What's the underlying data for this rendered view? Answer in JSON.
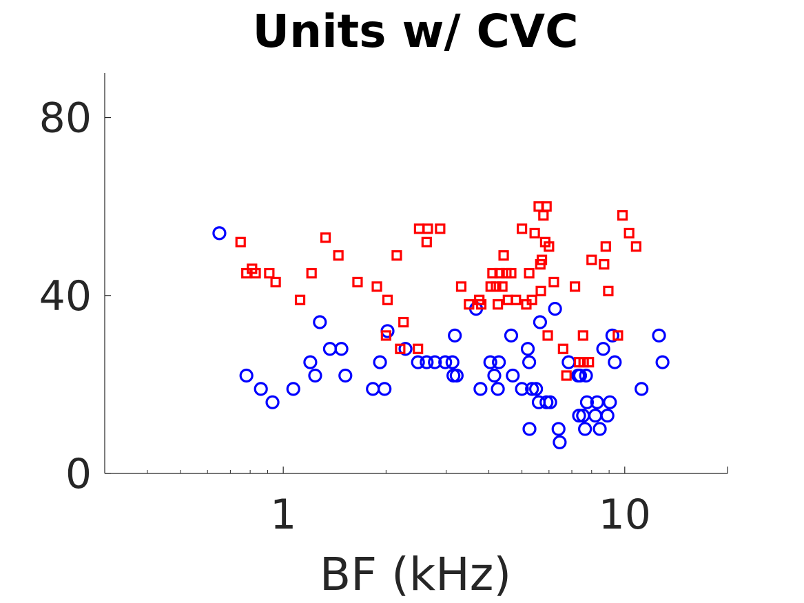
{
  "chart_data": {
    "type": "scatter",
    "title": "Units w/ CVC",
    "xlabel": "BF (kHz)",
    "ylabel": "",
    "xscale": "log",
    "xlim": [
      0.3,
      20
    ],
    "ylim": [
      0,
      90
    ],
    "xticks": [
      {
        "value": 1,
        "label": "1"
      },
      {
        "value": 10,
        "label": "10"
      }
    ],
    "yticks": [
      {
        "value": 0,
        "label": "0"
      },
      {
        "value": 40,
        "label": "40"
      },
      {
        "value": 80,
        "label": "80"
      }
    ],
    "grid": false,
    "colors": {
      "axis": "#262626",
      "title": "#000000"
    },
    "series": [
      {
        "name": "blue-circles",
        "marker": "circle",
        "color": "#0000ff",
        "points": [
          [
            0.65,
            54
          ],
          [
            0.78,
            22
          ],
          [
            0.86,
            19
          ],
          [
            0.93,
            16
          ],
          [
            1.07,
            19
          ],
          [
            1.2,
            25
          ],
          [
            1.24,
            22
          ],
          [
            1.28,
            34
          ],
          [
            1.37,
            28
          ],
          [
            1.48,
            28
          ],
          [
            1.52,
            22
          ],
          [
            1.83,
            19
          ],
          [
            1.92,
            25
          ],
          [
            1.98,
            19
          ],
          [
            2.02,
            32
          ],
          [
            2.28,
            28
          ],
          [
            2.48,
            25
          ],
          [
            2.63,
            25
          ],
          [
            2.78,
            25
          ],
          [
            2.98,
            25
          ],
          [
            3.13,
            25
          ],
          [
            3.15,
            22
          ],
          [
            3.18,
            31
          ],
          [
            3.22,
            22
          ],
          [
            3.67,
            37
          ],
          [
            3.78,
            19
          ],
          [
            4.04,
            25
          ],
          [
            4.15,
            22
          ],
          [
            4.25,
            19
          ],
          [
            4.28,
            25
          ],
          [
            4.65,
            31
          ],
          [
            4.7,
            22
          ],
          [
            5.0,
            19
          ],
          [
            5.2,
            28
          ],
          [
            5.25,
            25
          ],
          [
            5.26,
            10
          ],
          [
            5.35,
            19
          ],
          [
            5.5,
            19
          ],
          [
            5.6,
            16
          ],
          [
            5.65,
            34
          ],
          [
            5.9,
            16
          ],
          [
            6.05,
            16
          ],
          [
            6.25,
            37
          ],
          [
            6.4,
            10
          ],
          [
            6.45,
            7
          ],
          [
            6.85,
            25
          ],
          [
            7.3,
            22
          ],
          [
            7.35,
            13
          ],
          [
            7.4,
            22
          ],
          [
            7.55,
            13
          ],
          [
            7.65,
            10
          ],
          [
            7.7,
            22
          ],
          [
            7.75,
            16
          ],
          [
            8.2,
            13
          ],
          [
            8.3,
            16
          ],
          [
            8.45,
            10
          ],
          [
            8.65,
            28
          ],
          [
            8.9,
            13
          ],
          [
            9.05,
            16
          ],
          [
            9.2,
            31
          ],
          [
            9.35,
            25
          ],
          [
            11.2,
            19
          ],
          [
            12.6,
            31
          ],
          [
            12.9,
            25
          ]
        ]
      },
      {
        "name": "red-squares",
        "marker": "square",
        "color": "#ff0000",
        "points": [
          [
            0.75,
            52
          ],
          [
            0.78,
            45
          ],
          [
            0.81,
            46
          ],
          [
            0.83,
            45
          ],
          [
            0.91,
            45
          ],
          [
            0.95,
            43
          ],
          [
            1.12,
            39
          ],
          [
            1.21,
            45
          ],
          [
            1.33,
            53
          ],
          [
            1.45,
            49
          ],
          [
            1.65,
            43
          ],
          [
            1.88,
            42
          ],
          [
            2.0,
            31
          ],
          [
            2.02,
            39
          ],
          [
            2.15,
            49
          ],
          [
            2.2,
            28
          ],
          [
            2.25,
            34
          ],
          [
            2.48,
            28
          ],
          [
            2.5,
            55
          ],
          [
            2.63,
            52
          ],
          [
            2.65,
            55
          ],
          [
            2.88,
            55
          ],
          [
            3.32,
            42
          ],
          [
            3.5,
            38
          ],
          [
            3.75,
            39
          ],
          [
            3.8,
            38
          ],
          [
            4.05,
            42
          ],
          [
            4.1,
            45
          ],
          [
            4.2,
            42
          ],
          [
            4.25,
            38
          ],
          [
            4.3,
            45
          ],
          [
            4.38,
            42
          ],
          [
            4.42,
            49
          ],
          [
            4.5,
            45
          ],
          [
            4.55,
            39
          ],
          [
            4.65,
            45
          ],
          [
            4.8,
            39
          ],
          [
            5.0,
            55
          ],
          [
            5.15,
            38
          ],
          [
            5.25,
            45
          ],
          [
            5.35,
            39
          ],
          [
            5.45,
            54
          ],
          [
            5.6,
            60
          ],
          [
            5.66,
            47
          ],
          [
            5.68,
            41
          ],
          [
            5.72,
            48
          ],
          [
            5.78,
            58
          ],
          [
            5.85,
            52
          ],
          [
            5.9,
            60
          ],
          [
            5.95,
            31
          ],
          [
            6.0,
            51
          ],
          [
            6.2,
            43
          ],
          [
            6.6,
            28
          ],
          [
            6.75,
            22
          ],
          [
            7.15,
            42
          ],
          [
            7.35,
            25
          ],
          [
            7.55,
            31
          ],
          [
            7.58,
            25
          ],
          [
            7.85,
            25
          ],
          [
            8.0,
            48
          ],
          [
            8.7,
            47
          ],
          [
            8.8,
            51
          ],
          [
            8.95,
            41
          ],
          [
            9.55,
            31
          ],
          [
            9.85,
            58
          ],
          [
            10.3,
            54
          ],
          [
            10.8,
            51
          ]
        ]
      }
    ]
  }
}
